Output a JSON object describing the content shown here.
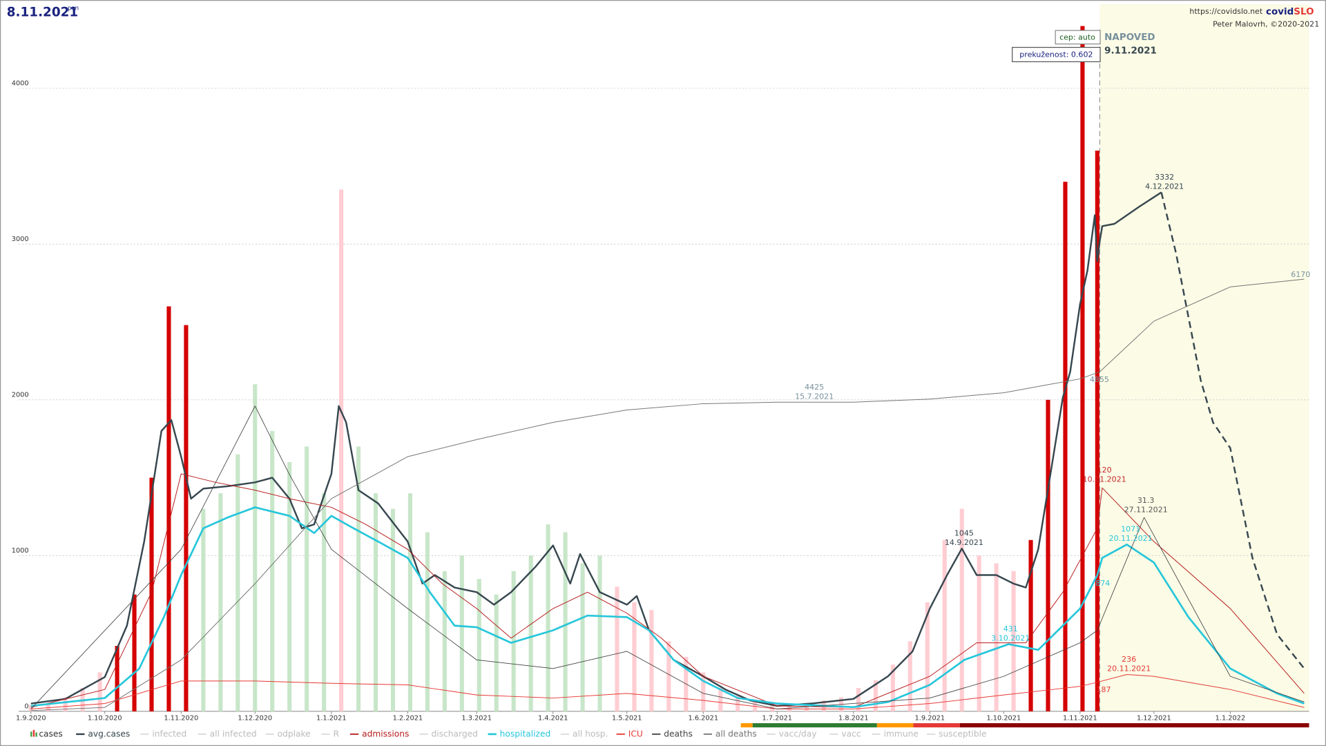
{
  "header": {
    "date": "8.11.2021",
    "weekday": "pon",
    "source": "https://covidslo.net",
    "logo_a": "covid",
    "logo_b": "SLO",
    "author": "Peter Malovrh, ©2020-2021",
    "cep": "cep: auto",
    "prekuzenost": "prekuženost: 0.602"
  },
  "chart_data": {
    "type": "line",
    "forecast_label": "NAPOVED",
    "forecast_date": "9.11.2021",
    "xlim": [
      "27.8.2020",
      "2.2.2022"
    ],
    "xticks": [
      "1.9.2020",
      "1.10.2020",
      "1.11.2020",
      "1.12.2020",
      "1.1.2021",
      "1.2.2021",
      "1.3.2021",
      "1.4.2021",
      "1.5.2021",
      "1.6.2021",
      "1.7.2021",
      "1.8.2021",
      "1.9.2021",
      "1.10.2021",
      "1.11.2021",
      "1.12.2021",
      "1.1.2022"
    ],
    "ylim": [
      0,
      4540
    ],
    "yticks": [
      0,
      1000,
      2000,
      3000,
      4000
    ],
    "grid": true,
    "series": [
      {
        "name": "cases",
        "kind": "bar",
        "color": "#ffcdd2",
        "x": [
          "1.9.2020",
          "8.9.2020",
          "15.9.2020",
          "22.9.2020",
          "29.9.2020",
          "6.10.2020",
          "13.10.2020",
          "20.10.2020",
          "27.10.2020",
          "3.11.2020",
          "10.11.2020",
          "17.11.2020",
          "24.11.2020",
          "1.12.2020",
          "8.12.2020",
          "15.12.2020",
          "22.12.2020",
          "29.12.2020",
          "5.1.2021",
          "12.1.2021",
          "19.1.2021",
          "26.1.2021",
          "2.2.2021",
          "9.2.2021",
          "16.2.2021",
          "23.2.2021",
          "2.3.2021",
          "9.3.2021",
          "16.3.2021",
          "23.3.2021",
          "30.3.2021",
          "6.4.2021",
          "13.4.2021",
          "20.4.2021",
          "27.4.2021",
          "4.5.2021",
          "11.5.2021",
          "18.5.2021",
          "25.5.2021",
          "1.6.2021",
          "8.6.2021",
          "15.6.2021",
          "22.6.2021",
          "29.6.2021",
          "6.7.2021",
          "13.7.2021",
          "20.7.2021",
          "27.7.2021",
          "3.8.2021",
          "10.8.2021",
          "17.8.2021",
          "24.8.2021",
          "31.8.2021",
          "7.9.2021",
          "14.9.2021",
          "21.9.2021",
          "28.9.2021",
          "5.10.2021",
          "12.10.2021",
          "19.10.2021",
          "26.10.2021",
          "2.11.2021",
          "8.11.2021"
        ],
        "values": [
          40,
          50,
          90,
          150,
          250,
          420,
          750,
          1500,
          2600,
          2480,
          1300,
          1400,
          1650,
          2100,
          1800,
          1600,
          1700,
          1400,
          3350,
          1700,
          1400,
          1300,
          1400,
          1150,
          900,
          1000,
          850,
          750,
          900,
          1000,
          1200,
          1150,
          950,
          1000,
          800,
          700,
          650,
          450,
          350,
          250,
          150,
          100,
          70,
          50,
          40,
          50,
          70,
          90,
          150,
          200,
          300,
          450,
          700,
          1100,
          1300,
          1000,
          950,
          900,
          1100,
          2000,
          3400,
          4400,
          3600
        ],
        "colors": [
          "#ffcdd2",
          "#ffcdd2",
          "#ffcdd2",
          "#ffcdd2",
          "#ffcdd2",
          "#d50000",
          "#d50000",
          "#d50000",
          "#d50000",
          "#d50000",
          "#c8e6c9",
          "#c8e6c9",
          "#c8e6c9",
          "#c8e6c9",
          "#c8e6c9",
          "#c8e6c9",
          "#c8e6c9",
          "#c8e6c9",
          "#ffcdd2",
          "#c8e6c9",
          "#c8e6c9",
          "#c8e6c9",
          "#c8e6c9",
          "#c8e6c9",
          "#c8e6c9",
          "#c8e6c9",
          "#c8e6c9",
          "#c8e6c9",
          "#c8e6c9",
          "#c8e6c9",
          "#c8e6c9",
          "#c8e6c9",
          "#c8e6c9",
          "#c8e6c9",
          "#ffcdd2",
          "#ffcdd2",
          "#ffcdd2",
          "#ffcdd2",
          "#ffcdd2",
          "#ffcdd2",
          "#ffcdd2",
          "#ffcdd2",
          "#ffcdd2",
          "#ffcdd2",
          "#ffcdd2",
          "#ffcdd2",
          "#ffcdd2",
          "#ffcdd2",
          "#ffcdd2",
          "#ffcdd2",
          "#ffcdd2",
          "#ffcdd2",
          "#ffcdd2",
          "#ffcdd2",
          "#ffcdd2",
          "#ffcdd2",
          "#ffcdd2",
          "#ffcdd2",
          "#d50000",
          "#d50000",
          "#d50000",
          "#d50000",
          "#d50000"
        ]
      },
      {
        "name": "avg.cases",
        "color": "#37474f",
        "width": 2,
        "x": [
          "1.9.2020",
          "15.9.2020",
          "1.10.2020",
          "10.10.2020",
          "17.10.2020",
          "24.10.2020",
          "28.10.2020",
          "1.11.2020",
          "5.11.2020",
          "10.11.2020",
          "20.11.2020",
          "1.12.2020",
          "8.12.2020",
          "15.12.2020",
          "20.12.2020",
          "25.12.2020",
          "1.1.2021",
          "4.1.2021",
          "7.1.2021",
          "12.1.2021",
          "20.1.2021",
          "1.2.2021",
          "7.2.2021",
          "12.2.2021",
          "20.2.2021",
          "1.3.2021",
          "8.3.2021",
          "15.3.2021",
          "25.3.2021",
          "1.4.2021",
          "8.4.2021",
          "12.4.2021",
          "20.4.2021",
          "1.5.2021",
          "5.5.2021",
          "10.5.2021",
          "20.5.2021",
          "1.6.2021",
          "10.6.2021",
          "20.6.2021",
          "1.7.2021",
          "15.7.2021",
          "1.8.2021",
          "15.8.2021",
          "25.8.2021",
          "1.9.2021",
          "8.9.2021",
          "14.9.2021",
          "20.9.2021",
          "28.9.2021",
          "5.10.2021",
          "10.10.2021",
          "15.10.2021",
          "20.10.2021",
          "25.10.2021",
          "28.10.2021",
          "1.11.2021",
          "4.11.2021",
          "7.11.2021",
          "8.11.2021",
          "9.11.2021",
          "10.11.2021",
          "15.11.2021",
          "25.11.2021",
          "4.12.2021",
          "10.12.2021",
          "20.12.2021",
          "25.12.2021",
          "1.1.2022",
          "10.1.2022",
          "20.1.2022",
          "31.1.2022"
        ],
        "values": [
          50,
          80,
          220,
          550,
          1090,
          1800,
          1870,
          1635,
          1365,
          1430,
          1445,
          1470,
          1500,
          1365,
          1175,
          1200,
          1525,
          1960,
          1855,
          1420,
          1335,
          1090,
          820,
          875,
          795,
          765,
          685,
          765,
          930,
          1065,
          820,
          1010,
          765,
          685,
          740,
          520,
          330,
          225,
          140,
          70,
          35,
          50,
          80,
          225,
          385,
          660,
          875,
          1045,
          875,
          875,
          820,
          795,
          1040,
          1525,
          2015,
          2180,
          2615,
          2830,
          3185,
          2890,
          3020,
          3115,
          3130,
          3240,
          3332,
          2940,
          2125,
          1855,
          1690,
          985,
          495,
          275
        ]
      },
      {
        "name": "infected",
        "color": "#c8c8c8"
      },
      {
        "name": "all infected",
        "color": "#c8c8c8"
      },
      {
        "name": "odplake",
        "color": "#c8c8c8"
      },
      {
        "name": "R",
        "color": "#c8c8c8"
      },
      {
        "name": "admissions",
        "color": "#b71c1c",
        "width": 0.8,
        "x": [
          "1.9.2020",
          "1.10.2020",
          "20.10.2020",
          "1.11.2020",
          "15.11.2020",
          "1.12.2020",
          "15.12.2020",
          "1.1.2021",
          "15.1.2021",
          "1.2.2021",
          "15.2.2021",
          "1.3.2021",
          "15.3.2021",
          "1.4.2021",
          "15.4.2021",
          "1.5.2021",
          "15.5.2021",
          "1.6.2021",
          "1.7.2021",
          "1.8.2021",
          "1.9.2021",
          "20.9.2021",
          "10.10.2021",
          "25.10.2021",
          "8.11.2021",
          "10.11.2021",
          "1.12.2021",
          "1.1.2022",
          "31.1.2022"
        ],
        "values": [
          25,
          140,
          765,
          1525,
          1470,
          1420,
          1365,
          1310,
          1200,
          1040,
          820,
          660,
          470,
          660,
          765,
          630,
          470,
          225,
          35,
          25,
          225,
          440,
          440,
          765,
          1175,
          1435,
          1090,
          660,
          115
        ]
      },
      {
        "name": "discharged",
        "color": "#c8c8c8"
      },
      {
        "name": "hospitalized",
        "color": "#26c6da",
        "width": 2.2,
        "x": [
          "1.9.2020",
          "1.10.2020",
          "15.10.2020",
          "25.10.2020",
          "1.11.2020",
          "10.11.2020",
          "20.11.2020",
          "1.12.2020",
          "15.12.2020",
          "25.12.2020",
          "1.1.2021",
          "10.1.2021",
          "20.1.2021",
          "1.2.2021",
          "10.2.2021",
          "20.2.2021",
          "1.3.2021",
          "15.3.2021",
          "1.4.2021",
          "15.4.2021",
          "1.5.2021",
          "10.5.2021",
          "20.5.2021",
          "1.6.2021",
          "15.6.2021",
          "1.7.2021",
          "1.8.2021",
          "15.8.2021",
          "1.9.2021",
          "15.9.2021",
          "3.10.2021",
          "15.10.2021",
          "25.10.2021",
          "1.11.2021",
          "8.11.2021",
          "10.11.2021",
          "20.11.2021",
          "1.12.2021",
          "15.12.2021",
          "1.1.2022",
          "20.1.2022",
          "31.1.2022"
        ],
        "values": [
          35,
          85,
          275,
          605,
          875,
          1175,
          1245,
          1310,
          1255,
          1145,
          1255,
          1175,
          1090,
          985,
          765,
          550,
          540,
          440,
          520,
          615,
          605,
          520,
          330,
          195,
          85,
          50,
          27,
          60,
          170,
          330,
          431,
          395,
          550,
          660,
          874,
          985,
          1071,
          955,
          605,
          275,
          115,
          50
        ]
      },
      {
        "name": "all hosp.",
        "color": "#c8c8c8"
      },
      {
        "name": "ICU",
        "color": "#e53935",
        "width": 0.8,
        "x": [
          "1.9.2020",
          "1.10.2020",
          "1.11.2020",
          "1.12.2020",
          "1.1.2021",
          "1.2.2021",
          "1.3.2021",
          "1.4.2021",
          "1.5.2021",
          "1.6.2021",
          "1.7.2021",
          "1.8.2021",
          "1.9.2021",
          "1.10.2021",
          "1.11.2021",
          "8.11.2021",
          "20.11.2021",
          "1.12.2021",
          "1.1.2022",
          "31.1.2022"
        ],
        "values": [
          15,
          50,
          195,
          195,
          180,
          170,
          105,
          85,
          115,
          70,
          15,
          15,
          50,
          105,
          160,
          187,
          236,
          225,
          140,
          25
        ]
      },
      {
        "name": "deaths",
        "color": "#424242",
        "width": 0.7,
        "x": [
          "1.9.2020",
          "1.11.2020",
          "1.12.2020",
          "15.12.2020",
          "1.1.2021",
          "1.2.2021",
          "1.3.2021",
          "1.4.2021",
          "1.5.2021",
          "1.6.2021",
          "1.7.2021",
          "1.9.2021",
          "1.10.2021",
          "1.11.2021",
          "8.11.2021",
          "27.11.2021",
          "1.1.2022",
          "31.1.2022"
        ],
        "values": [
          15,
          1040,
          1960,
          1520,
          1040,
          660,
          330,
          275,
          385,
          115,
          15,
          85,
          225,
          440,
          520,
          1245,
          225,
          60
        ]
      },
      {
        "name": "all deaths",
        "color": "#757575",
        "width": 0.8,
        "x": [
          "1.9.2020",
          "1.10.2020",
          "1.11.2020",
          "1.12.2020",
          "1.1.2021",
          "1.2.2021",
          "1.3.2021",
          "1.4.2021",
          "1.5.2021",
          "1.6.2021",
          "1.7.2021",
          "15.7.2021",
          "1.8.2021",
          "1.9.2021",
          "1.10.2021",
          "1.11.2021",
          "9.11.2021",
          "1.12.2021",
          "1.1.2022",
          "31.1.2022"
        ],
        "values": [
          5,
          25,
          330,
          820,
          1365,
          1635,
          1745,
          1855,
          1935,
          1975,
          1985,
          1985,
          1985,
          2005,
          2045,
          2135,
          2180,
          2505,
          2725,
          2775
        ]
      },
      {
        "name": "vacc/day",
        "color": "#c8c8c8"
      },
      {
        "name": "vacc",
        "color": "#c8c8c8"
      },
      {
        "name": "immune",
        "color": "#c8c8c8"
      },
      {
        "name": "susceptible",
        "color": "#c8c8c8"
      }
    ],
    "annotations": [
      {
        "lines": [
          "4425",
          "15.7.2021"
        ],
        "color": "#78909c"
      },
      {
        "lines": [
          "4855"
        ],
        "color": "#78909c"
      },
      {
        "lines": [
          "6170"
        ],
        "color": "#78909c"
      },
      {
        "lines": [
          "3332",
          "4.12.2021"
        ],
        "color": "#37474f"
      },
      {
        "lines": [
          "1045",
          "14.9.2021"
        ],
        "color": "#37474f"
      },
      {
        "lines": [
          "431",
          "3.10.2021"
        ],
        "color": "#26c6da"
      },
      {
        "lines": [
          "874"
        ],
        "color": "#26c6da"
      },
      {
        "lines": [
          "1071",
          "20.11.2021"
        ],
        "color": "#26c6da"
      },
      {
        "lines": [
          "120",
          "10.11.2021"
        ],
        "color": "#c62828"
      },
      {
        "lines": [
          "31.3",
          "27.11.2021"
        ],
        "color": "#555555"
      },
      {
        "lines": [
          "236",
          "20.11.2021"
        ],
        "color": "#e53935"
      },
      {
        "lines": [
          "187"
        ],
        "color": "#e53935"
      }
    ]
  }
}
